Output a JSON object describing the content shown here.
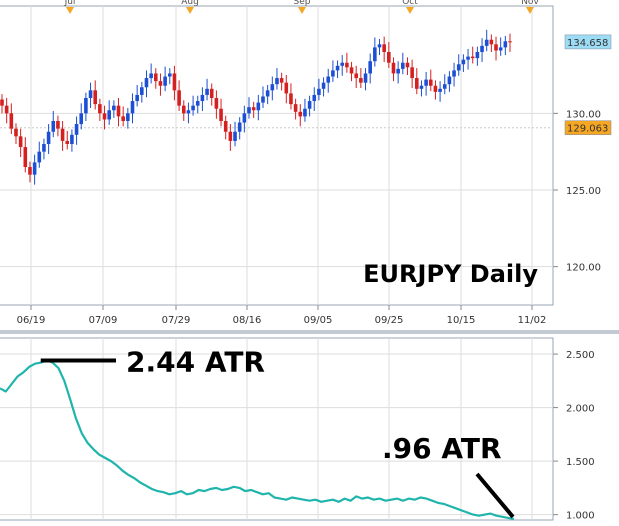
{
  "chart_data": [
    {
      "type": "candlestick",
      "title": "EURJPY Daily",
      "month_markers": [
        "Jul",
        "Aug",
        "Sep",
        "Oct",
        "Nov"
      ],
      "x_ticks": [
        "06/19",
        "07/09",
        "07/29",
        "08/16",
        "09/05",
        "09/25",
        "10/15",
        "11/02"
      ],
      "y_ticks": [
        "120.00",
        "125.00",
        "130.00"
      ],
      "ylim": [
        117.5,
        137.0
      ],
      "grid": true,
      "price_markers": [
        {
          "label": "134.658",
          "value": 134.658,
          "color": "#9ddcf5"
        },
        {
          "label": "129.063",
          "value": 129.063,
          "color": "#f5a623"
        }
      ],
      "candle_series": {
        "up_color": "#1c4fd4",
        "down_color": "#d42020",
        "values": [
          130.5,
          130.0,
          129.0,
          128.5,
          127.8,
          126.5,
          126.0,
          126.8,
          127.5,
          128.0,
          128.8,
          129.5,
          129.0,
          128.2,
          128.0,
          128.6,
          129.3,
          130.0,
          131.0,
          131.5,
          130.6,
          130.0,
          129.6,
          130.2,
          130.5,
          129.8,
          129.5,
          130.0,
          130.8,
          131.2,
          131.7,
          132.3,
          132.6,
          132.1,
          131.8,
          132.4,
          132.6,
          131.5,
          130.5,
          130.0,
          130.2,
          130.5,
          130.8,
          131.2,
          131.6,
          131.0,
          130.3,
          129.5,
          128.8,
          128.2,
          128.8,
          129.4,
          130.0,
          130.4,
          130.2,
          130.7,
          131.1,
          131.5,
          131.9,
          132.3,
          132.0,
          131.3,
          130.6,
          130.1,
          129.8,
          130.3,
          130.8,
          131.2,
          131.6,
          132.0,
          132.4,
          132.8,
          133.1,
          133.3,
          133.0,
          132.6,
          132.3,
          132.0,
          132.6,
          133.4,
          134.3,
          134.5,
          134.0,
          133.3,
          132.6,
          132.9,
          133.3,
          133.0,
          132.3,
          131.6,
          131.8,
          132.2,
          131.8,
          131.4,
          131.6,
          131.9,
          132.4,
          132.8,
          133.2,
          133.5,
          133.7,
          133.6,
          134.0,
          134.4,
          134.8,
          134.5,
          134.1,
          134.3,
          134.7,
          134.658
        ]
      }
    },
    {
      "type": "line",
      "y_ticks": [
        "1.000",
        "1.500",
        "2.000",
        "2.500"
      ],
      "ylim": [
        0.95,
        2.65
      ],
      "grid": true,
      "annotations": [
        {
          "text": "2.44 ATR",
          "value": 2.44
        },
        {
          "text": ".96 ATR",
          "value": 0.96
        }
      ],
      "series": [
        {
          "color": "#1fb5ad",
          "values": [
            2.18,
            2.15,
            2.22,
            2.29,
            2.33,
            2.38,
            2.41,
            2.42,
            2.44,
            2.42,
            2.37,
            2.25,
            2.08,
            1.9,
            1.76,
            1.67,
            1.61,
            1.56,
            1.53,
            1.5,
            1.46,
            1.41,
            1.37,
            1.34,
            1.3,
            1.27,
            1.24,
            1.22,
            1.21,
            1.19,
            1.2,
            1.22,
            1.19,
            1.2,
            1.23,
            1.22,
            1.24,
            1.25,
            1.23,
            1.24,
            1.26,
            1.25,
            1.22,
            1.23,
            1.21,
            1.19,
            1.2,
            1.16,
            1.15,
            1.14,
            1.16,
            1.15,
            1.14,
            1.13,
            1.14,
            1.12,
            1.13,
            1.14,
            1.12,
            1.15,
            1.13,
            1.17,
            1.15,
            1.16,
            1.14,
            1.15,
            1.13,
            1.14,
            1.15,
            1.13,
            1.15,
            1.14,
            1.16,
            1.15,
            1.13,
            1.11,
            1.1,
            1.08,
            1.06,
            1.04,
            1.02,
            1.0,
            0.99,
            1.0,
            1.01,
            0.99,
            0.98,
            0.97,
            0.96
          ]
        }
      ]
    }
  ]
}
